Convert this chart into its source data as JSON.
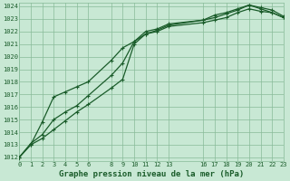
{
  "bg_color": "#c8e8d4",
  "grid_color": "#88bb99",
  "line_color": "#1a5c2a",
  "title": "Graphe pression niveau de la mer (hPa)",
  "xlim": [
    0,
    23
  ],
  "ylim": [
    1012,
    1024
  ],
  "yticks": [
    1012,
    1013,
    1014,
    1015,
    1016,
    1017,
    1018,
    1019,
    1020,
    1021,
    1022,
    1023,
    1024
  ],
  "xtick_positions": [
    0,
    1,
    2,
    3,
    4,
    5,
    6,
    8,
    9,
    10,
    11,
    12,
    13,
    16,
    17,
    18,
    19,
    20,
    21,
    22,
    23
  ],
  "xtick_labels": [
    "0",
    "1",
    "2",
    "3",
    "4",
    "5",
    "6",
    "8",
    "9",
    "10",
    "11",
    "12",
    "13",
    "16",
    "17",
    "18",
    "19",
    "20",
    "21",
    "22",
    "23"
  ],
  "series1_x": [
    0,
    1,
    2,
    3,
    4,
    5,
    6,
    8,
    9,
    10,
    11,
    12,
    13,
    16,
    17,
    18,
    19,
    20,
    21,
    22,
    23
  ],
  "series1_y": [
    1012.0,
    1013.0,
    1013.5,
    1014.2,
    1014.9,
    1015.6,
    1016.2,
    1017.5,
    1018.2,
    1021.0,
    1021.8,
    1022.0,
    1022.4,
    1022.7,
    1022.9,
    1023.1,
    1023.5,
    1023.8,
    1023.6,
    1023.5,
    1023.1
  ],
  "series2_x": [
    0,
    1,
    2,
    3,
    4,
    5,
    6,
    8,
    9,
    10,
    11,
    12,
    13,
    16,
    17,
    18,
    19,
    20,
    21,
    22,
    23
  ],
  "series2_y": [
    1012.0,
    1013.1,
    1013.8,
    1015.0,
    1015.6,
    1016.1,
    1016.9,
    1018.5,
    1019.5,
    1021.2,
    1022.0,
    1022.2,
    1022.6,
    1022.9,
    1023.1,
    1023.4,
    1023.7,
    1024.1,
    1023.9,
    1023.7,
    1023.2
  ],
  "series3_x": [
    0,
    1,
    2,
    3,
    4,
    5,
    6,
    8,
    9,
    10,
    11,
    12,
    13,
    16,
    17,
    18,
    19,
    20,
    21,
    22,
    23
  ],
  "series3_y": [
    1012.0,
    1013.0,
    1014.8,
    1016.8,
    1017.2,
    1017.6,
    1018.0,
    1019.7,
    1020.7,
    1021.2,
    1021.8,
    1022.1,
    1022.5,
    1022.9,
    1023.3,
    1023.5,
    1023.8,
    1024.1,
    1023.8,
    1023.5,
    1023.1
  ],
  "title_fontsize": 6.5,
  "tick_fontsize": 5.0
}
